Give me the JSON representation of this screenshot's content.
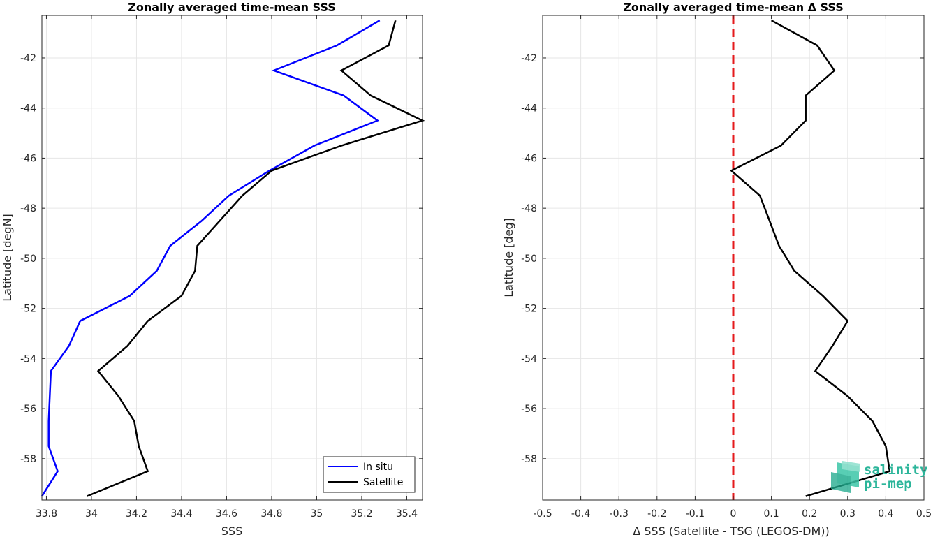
{
  "chart_data": [
    {
      "type": "line",
      "title": "Zonally averaged time-mean SSS",
      "xlabel": "SSS",
      "ylabel": "Latitude [degN]",
      "xlim": [
        33.78,
        35.47
      ],
      "ylim": [
        -59.65,
        -40.3
      ],
      "xticks": [
        33.8,
        34,
        34.2,
        34.4,
        34.6,
        34.8,
        35,
        35.2,
        35.4
      ],
      "xtick_labels": [
        "33.8",
        "34",
        "34.2",
        "34.4",
        "34.6",
        "34.8",
        "35",
        "35.2",
        "35.4"
      ],
      "yticks": [
        -42,
        -44,
        -46,
        -48,
        -50,
        -52,
        -54,
        -56,
        -58
      ],
      "ytick_labels": [
        "-42",
        "-44",
        "-46",
        "-48",
        "-50",
        "-52",
        "-54",
        "-56",
        "-58"
      ],
      "grid": true,
      "legend_position": "bottom-right",
      "series": [
        {
          "name": "In situ",
          "color": "#0000ff",
          "y": [
            -40.5,
            -41.5,
            -42.5,
            -43.5,
            -44.5,
            -45.5,
            -46.5,
            -47.5,
            -48.5,
            -49.5,
            -50.5,
            -51.5,
            -52.5,
            -53.5,
            -54.5,
            -55.5,
            -56.5,
            -57.5,
            -58.5,
            -59.5
          ],
          "x": [
            35.28,
            35.09,
            34.81,
            35.12,
            35.27,
            34.99,
            34.79,
            34.61,
            34.49,
            34.35,
            34.29,
            34.17,
            33.95,
            33.9,
            33.82,
            33.815,
            33.81,
            33.81,
            33.85,
            33.78
          ]
        },
        {
          "name": "Satellite",
          "color": "#000000",
          "y": [
            -40.5,
            -41.5,
            -42.5,
            -43.5,
            -44.5,
            -45.5,
            -46.5,
            -47.5,
            -48.5,
            -49.5,
            -50.5,
            -51.5,
            -52.5,
            -53.5,
            -54.5,
            -55.5,
            -56.5,
            -57.5,
            -58.5,
            -59.5
          ],
          "x": [
            35.35,
            35.32,
            35.11,
            35.24,
            35.47,
            35.11,
            34.8,
            34.67,
            34.57,
            34.47,
            34.46,
            34.4,
            34.25,
            34.16,
            34.03,
            34.12,
            34.19,
            34.21,
            34.25,
            33.98
          ]
        }
      ]
    },
    {
      "type": "line",
      "title": "Zonally averaged time-mean Δ SSS",
      "xlabel": "Δ SSS (Satellite - TSG (LEGOS-DM))",
      "ylabel": "Latitude [deg]",
      "xlim": [
        -0.5,
        0.5
      ],
      "ylim": [
        -59.65,
        -40.3
      ],
      "xticks": [
        -0.5,
        -0.4,
        -0.3,
        -0.2,
        -0.1,
        0,
        0.1,
        0.2,
        0.3,
        0.4,
        0.5
      ],
      "xtick_labels": [
        "-0.5",
        "-0.4",
        "-0.3",
        "-0.2",
        "-0.1",
        "0",
        "0.1",
        "0.2",
        "0.3",
        "0.4",
        "0.5"
      ],
      "yticks": [
        -42,
        -44,
        -46,
        -48,
        -50,
        -52,
        -54,
        -56,
        -58
      ],
      "ytick_labels": [
        "-42",
        "-44",
        "-46",
        "-48",
        "-50",
        "-52",
        "-54",
        "-56",
        "-58"
      ],
      "grid": true,
      "reference_line": {
        "x": 0,
        "color": "#e41a1c",
        "style": "dashed"
      },
      "series": [
        {
          "color": "#000000",
          "y": [
            -40.5,
            -41.5,
            -42.5,
            -43.5,
            -44.5,
            -45.5,
            -46.5,
            -47.5,
            -48.5,
            -49.5,
            -50.5,
            -51.5,
            -52.5,
            -53.5,
            -54.5,
            -55.5,
            -56.5,
            -57.5,
            -58.5,
            -59.5
          ],
          "x": [
            0.1,
            0.22,
            0.265,
            0.19,
            0.19,
            0.125,
            -0.005,
            0.07,
            0.095,
            0.12,
            0.16,
            0.235,
            0.3,
            0.26,
            0.215,
            0.3,
            0.365,
            0.4,
            0.41,
            0.19
          ]
        }
      ]
    }
  ],
  "logo": {
    "line1": "salinity",
    "line2": "pi-mep",
    "color": "#2bb59a"
  }
}
